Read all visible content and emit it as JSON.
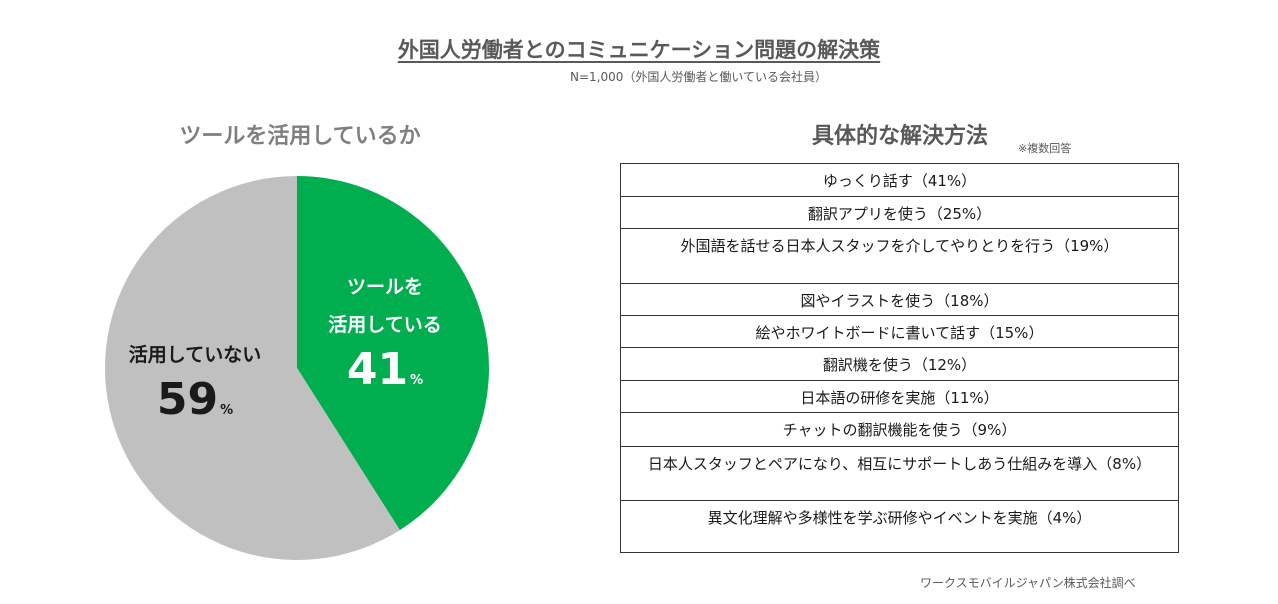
{
  "header": {
    "title": "外国人労働者とのコミュニケーション問題の解決策",
    "subtitle": "N=1,000（外国人労働者と働いている会社員）"
  },
  "left": {
    "title": "ツールを活用しているか"
  },
  "right": {
    "title": "具体的な解決方法",
    "note": "※複数回答"
  },
  "chart_data": [
    {
      "type": "pie",
      "title": "ツールを活用しているか",
      "slices": [
        {
          "label_lines": [
            "ツールを",
            "活用している"
          ],
          "value": 41,
          "unit": "%",
          "color": "#00ae4f"
        },
        {
          "label_lines": [
            "活用していない"
          ],
          "value": 59,
          "unit": "%",
          "color": "#c0c0c0"
        }
      ]
    },
    {
      "type": "table",
      "title": "具体的な解決方法",
      "rows": [
        {
          "text": "ゆっくり話す（41%）",
          "value": 41
        },
        {
          "text": "翻訳アプリを使う（25%）",
          "value": 25
        },
        {
          "text": "外国語を話せる日本人スタッフを介してやりとりを行う（19%）",
          "value": 19
        },
        {
          "text": "図やイラストを使う（18%）",
          "value": 18
        },
        {
          "text": "絵やホワイトボードに書いて話す（15%）",
          "value": 15
        },
        {
          "text": "翻訳機を使う（12%）",
          "value": 12
        },
        {
          "text": "日本語の研修を実施（11%）",
          "value": 11
        },
        {
          "text": "チャットの翻訳機能を使う（9%）",
          "value": 9
        },
        {
          "text": "日本人スタッフとペアになり、相互にサポートしあう仕組みを導入（8%）",
          "value": 8
        },
        {
          "text": "異文化理解や多様性を学ぶ研修やイベントを実施（4%）",
          "value": 4
        }
      ]
    }
  ],
  "footer": {
    "credit": "ワークスモバイルジャパン株式会社調べ"
  }
}
